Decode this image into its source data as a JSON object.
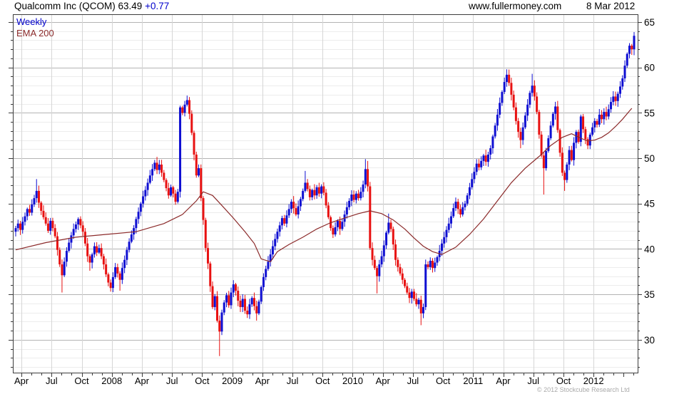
{
  "header": {
    "title": "Qualcomm Inc (QCOM) 63.49 ",
    "change": "+0.77",
    "website": "www.fullermoney.com",
    "date": "8 Mar 2012"
  },
  "legend": {
    "weekly": "Weekly",
    "ema": "EMA 200"
  },
  "footer": {
    "copyright": "© 2012 Stockcube Research Ltd"
  },
  "colors": {
    "up": "#0f0fd2",
    "down": "#e81111",
    "ema": "#8b2a2a",
    "frame": "#3c3c3c",
    "grid_minor": "#ececec",
    "grid_major": "#b4b4b4",
    "grid_vertical": "#d6d6d6",
    "tick": "#3c3c3c",
    "label": "#000000",
    "copyright": "#aaaaaa"
  },
  "chart_data": {
    "type": "candlestick",
    "timeframe": "weekly",
    "instrument": "Qualcomm Inc (QCOM)",
    "last_price": 63.49,
    "last_change": 0.77,
    "overlay": "EMA 200",
    "ylim": [
      26.4,
      65.9
    ],
    "y_ticks": [
      30,
      35,
      40,
      45,
      50,
      55,
      60,
      65
    ],
    "y_minor_step": 1,
    "x_labels": [
      {
        "label": "Apr",
        "week": 2.5
      },
      {
        "label": "Jul",
        "week": 15.5
      },
      {
        "label": "Oct",
        "week": 28.5
      },
      {
        "label": "2008",
        "week": 41.5
      },
      {
        "label": "Apr",
        "week": 54.5
      },
      {
        "label": "Jul",
        "week": 67.5
      },
      {
        "label": "Oct",
        "week": 80.5
      },
      {
        "label": "2009",
        "week": 93.5
      },
      {
        "label": "Apr",
        "week": 106.5
      },
      {
        "label": "Jul",
        "week": 119.5
      },
      {
        "label": "Oct",
        "week": 132.5
      },
      {
        "label": "2010",
        "week": 145.5
      },
      {
        "label": "Apr",
        "week": 158.5
      },
      {
        "label": "Jul",
        "week": 171.5
      },
      {
        "label": "Oct",
        "week": 184.5
      },
      {
        "label": "2011",
        "week": 197.5
      },
      {
        "label": "Apr",
        "week": 210.5
      },
      {
        "label": "Jul",
        "week": 223.5
      },
      {
        "label": "Oct",
        "week": 236.5
      },
      {
        "label": "2012",
        "week": 249.5
      }
    ],
    "month_tick_start_week": 2.5,
    "month_tick_step_weeks": 4.3333,
    "first_open": 41.9,
    "closes": [
      42.3,
      42.8,
      42.1,
      43.0,
      43.6,
      44.4,
      44.0,
      44.9,
      45.6,
      46.4,
      45.1,
      44.2,
      43.5,
      42.8,
      42.0,
      43.1,
      42.3,
      41.4,
      39.9,
      38.3,
      37.1,
      38.6,
      39.8,
      40.7,
      41.5,
      42.2,
      42.7,
      43.3,
      42.6,
      41.9,
      40.6,
      39.2,
      38.5,
      39.4,
      40.3,
      39.6,
      40.1,
      39.2,
      38.3,
      37.2,
      36.3,
      35.7,
      36.9,
      38.0,
      37.3,
      36.6,
      37.9,
      38.8,
      39.9,
      40.8,
      41.6,
      42.3,
      43.3,
      44.1,
      45.0,
      45.8,
      46.5,
      47.3,
      48.1,
      48.8,
      49.5,
      48.7,
      49.3,
      48.4,
      47.6,
      46.7,
      45.9,
      46.8,
      46.1,
      45.2,
      46.3,
      55.6,
      55.0,
      55.9,
      56.4,
      54.9,
      52.8,
      50.4,
      48.1,
      48.9,
      45.6,
      43.2,
      40.1,
      38.4,
      35.9,
      33.6,
      34.8,
      32.1,
      30.9,
      33.0,
      34.1,
      34.9,
      33.8,
      35.2,
      36.1,
      35.4,
      34.3,
      33.6,
      34.5,
      33.2,
      32.8,
      33.9,
      34.6,
      33.7,
      32.9,
      34.2,
      35.8,
      36.9,
      37.8,
      38.6,
      39.4,
      40.3,
      41.1,
      41.9,
      42.6,
      43.4,
      42.8,
      43.7,
      44.4,
      45.2,
      44.5,
      43.8,
      44.7,
      45.5,
      46.4,
      47.3,
      46.6,
      45.7,
      46.5,
      45.9,
      46.8,
      46.1,
      46.9,
      46.2,
      44.8,
      43.5,
      42.3,
      41.6,
      42.4,
      43.1,
      42.2,
      43.0,
      43.8,
      44.6,
      45.3,
      46.0,
      45.4,
      46.1,
      45.6,
      46.3,
      47.1,
      48.8,
      46.9,
      40.1,
      38.8,
      37.9,
      37.0,
      38.3,
      39.2,
      40.4,
      41.8,
      42.9,
      42.2,
      40.5,
      38.8,
      38.0,
      37.3,
      36.6,
      35.9,
      35.2,
      34.6,
      35.3,
      34.5,
      33.9,
      34.4,
      32.9,
      33.6,
      38.3,
      38.0,
      38.7,
      37.9,
      38.5,
      39.1,
      39.8,
      40.6,
      41.3,
      42.1,
      42.8,
      43.6,
      44.5,
      45.2,
      44.4,
      43.8,
      44.6,
      45.0,
      45.9,
      46.8,
      47.7,
      48.5,
      49.4,
      49.0,
      49.7,
      50.3,
      49.6,
      50.4,
      51.1,
      52.4,
      53.6,
      54.8,
      56.1,
      57.3,
      58.4,
      59.2,
      58.3,
      57.0,
      55.6,
      54.1,
      52.9,
      52.0,
      53.4,
      54.7,
      55.9,
      57.2,
      58.0,
      56.8,
      55.1,
      52.6,
      50.3,
      48.9,
      50.8,
      52.2,
      53.6,
      54.9,
      55.7,
      53.1,
      50.6,
      48.4,
      47.6,
      49.3,
      50.9,
      49.8,
      51.7,
      52.9,
      51.8,
      54.6,
      53.2,
      52.1,
      51.4,
      52.6,
      53.4,
      54.1,
      53.7,
      54.8,
      54.3,
      55.1,
      54.6,
      55.4,
      56.2,
      56.8,
      56.3,
      57.1,
      57.9,
      58.8,
      60.2,
      61.5,
      62.4,
      62.0,
      63.49
    ],
    "extreme_highs": {
      "9": 47.7,
      "74": 56.9,
      "125": 48.6,
      "151": 49.9,
      "152": 49.7,
      "161": 43.9,
      "212": 59.8,
      "223": 59.3,
      "267": 63.9
    },
    "extreme_lows": {
      "20": 35.2,
      "32": 37.6,
      "41": 35.3,
      "45": 35.4,
      "88": 28.2,
      "104": 32.1,
      "156": 35.1,
      "175": 31.6,
      "218": 51.1,
      "228": 46.0,
      "237": 46.4,
      "247": 51.0
    },
    "ema_points": [
      [
        0,
        39.9
      ],
      [
        13,
        40.7
      ],
      [
        26,
        41.3
      ],
      [
        39,
        41.6
      ],
      [
        52,
        41.9
      ],
      [
        64,
        42.8
      ],
      [
        72,
        43.8
      ],
      [
        78,
        45.3
      ],
      [
        81,
        46.3
      ],
      [
        85,
        45.9
      ],
      [
        89,
        44.8
      ],
      [
        94,
        43.4
      ],
      [
        99,
        41.9
      ],
      [
        103,
        40.6
      ],
      [
        106,
        38.9
      ],
      [
        110,
        38.6
      ],
      [
        113,
        39.7
      ],
      [
        118,
        40.5
      ],
      [
        124,
        41.3
      ],
      [
        130,
        42.2
      ],
      [
        136,
        42.9
      ],
      [
        142,
        43.4
      ],
      [
        148,
        43.9
      ],
      [
        153,
        44.2
      ],
      [
        158,
        43.9
      ],
      [
        163,
        43.2
      ],
      [
        168,
        42.2
      ],
      [
        172,
        41.2
      ],
      [
        176,
        40.3
      ],
      [
        180,
        39.7
      ],
      [
        184,
        39.4
      ],
      [
        190,
        40.2
      ],
      [
        196,
        41.6
      ],
      [
        202,
        43.3
      ],
      [
        208,
        45.3
      ],
      [
        214,
        47.3
      ],
      [
        220,
        48.9
      ],
      [
        226,
        50.2
      ],
      [
        231,
        51.4
      ],
      [
        236,
        52.3
      ],
      [
        240,
        52.7
      ],
      [
        244,
        52.2
      ],
      [
        247,
        51.9
      ],
      [
        250,
        52.0
      ],
      [
        253,
        52.3
      ],
      [
        256,
        52.8
      ],
      [
        259,
        53.5
      ],
      [
        262,
        54.3
      ],
      [
        265,
        55.2
      ],
      [
        266,
        55.5
      ]
    ]
  }
}
